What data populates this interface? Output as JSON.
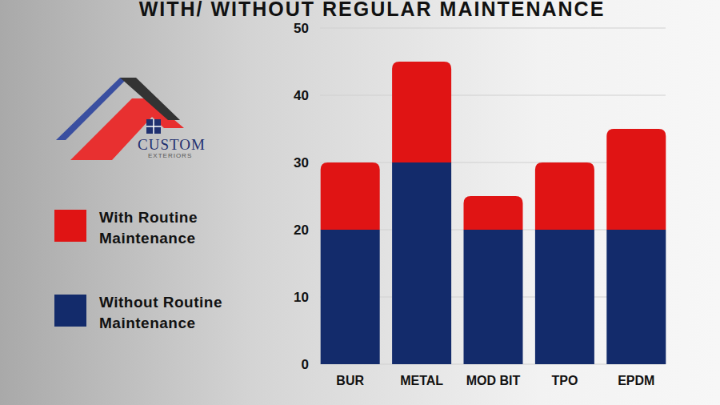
{
  "chart_data": {
    "type": "bar",
    "title": "WITH/ WITHOUT REGULAR MAINTENANCE",
    "annotations": [
      "CUSTOM",
      "EXTERIORS"
    ],
    "categories": [
      "BUR",
      "METAL",
      "MOD BIT",
      "TPO",
      "EPDM"
    ],
    "series": [
      {
        "name": "Without Routine Maintenance",
        "color": "#132b6b",
        "values": [
          20,
          30,
          20,
          20,
          20
        ]
      },
      {
        "name": "With Routine Maintenance",
        "color": "#e01414",
        "values": [
          10,
          15,
          5,
          10,
          15
        ]
      }
    ],
    "stacked": true,
    "ylim": [
      0,
      50
    ],
    "yticks": [
      0,
      10,
      20,
      30,
      40,
      50
    ],
    "grid": true
  }
}
